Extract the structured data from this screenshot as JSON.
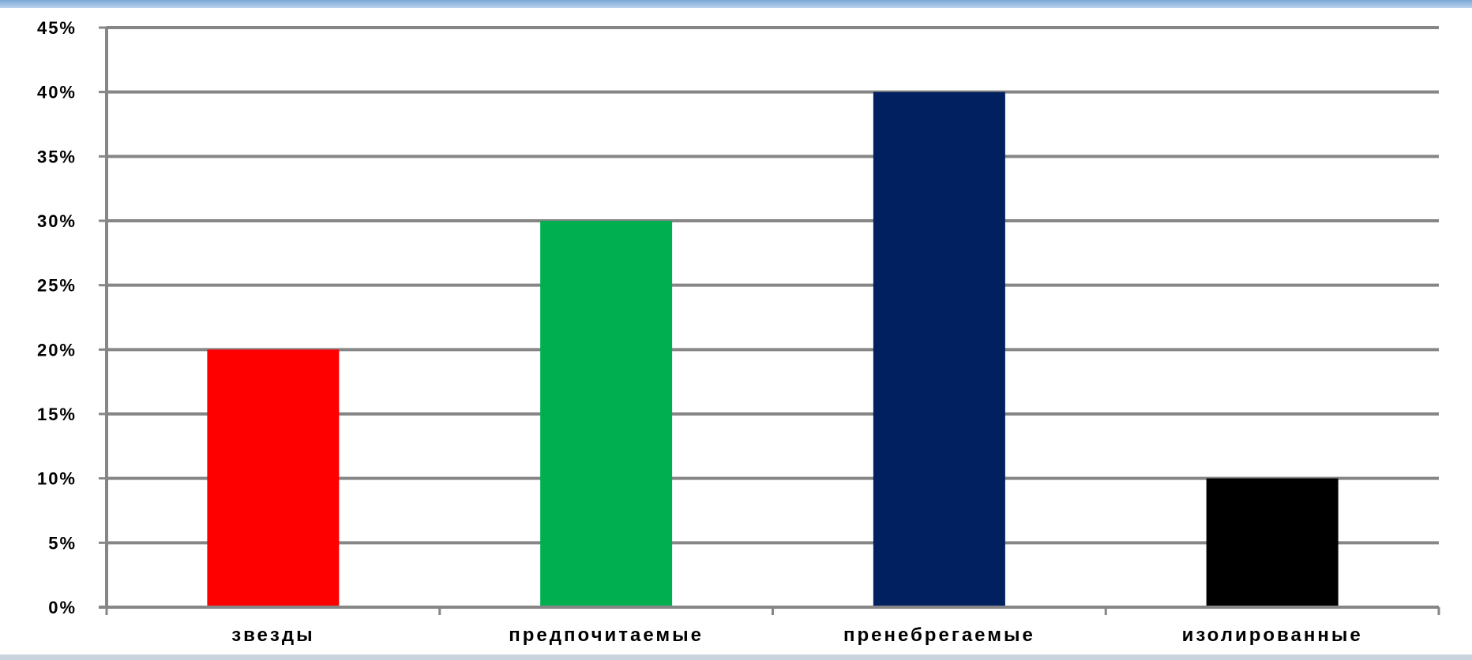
{
  "chart_data": {
    "type": "bar",
    "categories": [
      "звезды",
      "предпочитаемые",
      "пренебрегаемые",
      "изолированные"
    ],
    "values": [
      20,
      30,
      40,
      10
    ],
    "colors": [
      "#ff0000",
      "#00b050",
      "#002060",
      "#000000"
    ],
    "yticks": [
      "0%",
      "5%",
      "10%",
      "15%",
      "20%",
      "25%",
      "30%",
      "35%",
      "40%",
      "45%"
    ],
    "ylim": [
      0,
      45
    ],
    "grid": true,
    "legend": "none",
    "title": "",
    "xlabel": "",
    "ylabel": ""
  }
}
